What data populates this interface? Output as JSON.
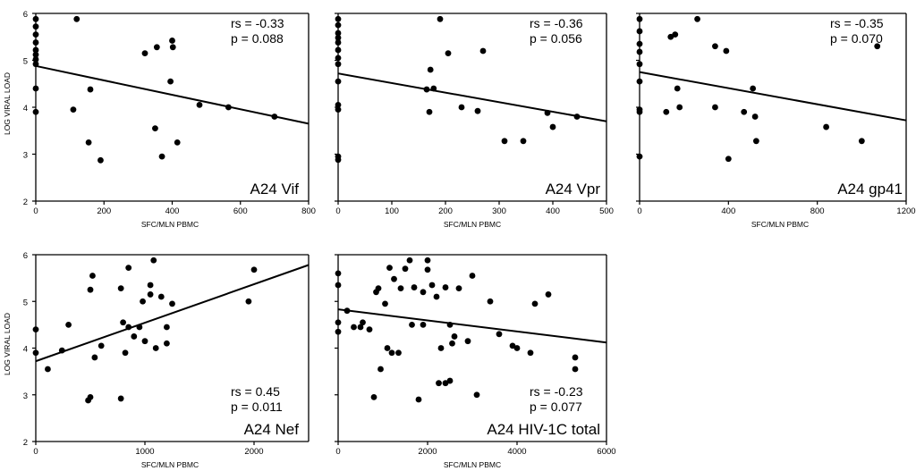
{
  "chart_data": [
    {
      "type": "scatter",
      "panel_label": "A24 Vif",
      "stats": {
        "rs": "rs = -0.33",
        "p": "p = 0.088"
      },
      "xlabel": "SFC/MLN PBMC",
      "ylabel": "LOG VIRAL LOAD",
      "xlim": [
        0,
        800
      ],
      "ylim": [
        2,
        6
      ],
      "x_ticks": [
        "0",
        "200",
        "400",
        "600",
        "800"
      ],
      "y_ticks": [
        "2",
        "3",
        "4",
        "5",
        "6"
      ],
      "grid": false,
      "regression": {
        "start": [
          0,
          4.88
        ],
        "end": [
          800,
          3.65
        ]
      },
      "points": [
        [
          0,
          5.88
        ],
        [
          0,
          5.72
        ],
        [
          0,
          5.55
        ],
        [
          0,
          5.38
        ],
        [
          0,
          5.22
        ],
        [
          0,
          5.12
        ],
        [
          0,
          5.02
        ],
        [
          0,
          4.92
        ],
        [
          0,
          4.4
        ],
        [
          0,
          3.9
        ],
        [
          110,
          3.95
        ],
        [
          120,
          5.88
        ],
        [
          155,
          3.25
        ],
        [
          160,
          4.38
        ],
        [
          190,
          2.87
        ],
        [
          320,
          5.15
        ],
        [
          350,
          3.55
        ],
        [
          355,
          5.28
        ],
        [
          370,
          2.95
        ],
        [
          395,
          4.55
        ],
        [
          400,
          5.42
        ],
        [
          402,
          5.28
        ],
        [
          415,
          3.25
        ],
        [
          480,
          4.05
        ],
        [
          565,
          4.0
        ],
        [
          700,
          3.8
        ]
      ]
    },
    {
      "type": "scatter",
      "panel_label": "A24 Vpr",
      "stats": {
        "rs": "rs = -0.36",
        "p": "p = 0.056"
      },
      "xlabel": "SFC/MLN PBMC",
      "ylabel": "",
      "xlim": [
        0,
        500
      ],
      "ylim": [
        2,
        6
      ],
      "x_ticks": [
        "0",
        "100",
        "200",
        "300",
        "400",
        "500"
      ],
      "y_ticks": [],
      "grid": false,
      "regression": {
        "start": [
          0,
          4.72
        ],
        "end": [
          500,
          3.7
        ]
      },
      "points": [
        [
          0,
          5.88
        ],
        [
          0,
          5.75
        ],
        [
          0,
          5.58
        ],
        [
          0,
          5.48
        ],
        [
          0,
          5.38
        ],
        [
          0,
          5.22
        ],
        [
          0,
          5.05
        ],
        [
          0,
          4.92
        ],
        [
          0,
          4.55
        ],
        [
          0,
          4.05
        ],
        [
          0,
          3.95
        ],
        [
          0,
          2.95
        ],
        [
          0,
          2.88
        ],
        [
          165,
          4.38
        ],
        [
          170,
          3.9
        ],
        [
          172,
          4.8
        ],
        [
          178,
          4.4
        ],
        [
          190,
          5.88
        ],
        [
          205,
          5.15
        ],
        [
          230,
          4.0
        ],
        [
          260,
          3.92
        ],
        [
          270,
          5.2
        ],
        [
          310,
          3.28
        ],
        [
          345,
          3.28
        ],
        [
          390,
          3.88
        ],
        [
          400,
          3.58
        ],
        [
          445,
          3.8
        ]
      ]
    },
    {
      "type": "scatter",
      "panel_label": "A24 gp41",
      "stats": {
        "rs": "rs = -0.35",
        "p": "p = 0.070"
      },
      "xlabel": "SFC/MLN PBMC",
      "ylabel": "",
      "xlim": [
        0,
        1200
      ],
      "ylim": [
        2,
        6
      ],
      "x_ticks": [
        "0",
        "400",
        "800",
        "1200"
      ],
      "y_ticks": [],
      "grid": false,
      "regression": {
        "start": [
          0,
          4.75
        ],
        "end": [
          1200,
          3.72
        ]
      },
      "points": [
        [
          0,
          5.88
        ],
        [
          0,
          5.62
        ],
        [
          0,
          5.35
        ],
        [
          0,
          5.18
        ],
        [
          0,
          4.92
        ],
        [
          0,
          4.55
        ],
        [
          0,
          3.95
        ],
        [
          0,
          3.9
        ],
        [
          0,
          2.95
        ],
        [
          120,
          3.9
        ],
        [
          140,
          5.5
        ],
        [
          160,
          5.55
        ],
        [
          170,
          4.4
        ],
        [
          180,
          4.0
        ],
        [
          260,
          5.88
        ],
        [
          340,
          5.3
        ],
        [
          340,
          4.0
        ],
        [
          390,
          5.2
        ],
        [
          400,
          2.9
        ],
        [
          470,
          3.9
        ],
        [
          510,
          4.4
        ],
        [
          520,
          3.8
        ],
        [
          525,
          3.28
        ],
        [
          840,
          3.58
        ],
        [
          1000,
          3.28
        ],
        [
          1070,
          5.3
        ]
      ]
    },
    {
      "type": "scatter",
      "panel_label": "A24 Nef",
      "stats": {
        "rs": "rs = 0.45",
        "p": "p = 0.011"
      },
      "xlabel": "SFC/MLN PBMC",
      "ylabel": "LOG VIRAL LOAD",
      "xlim": [
        0,
        2500
      ],
      "ylim": [
        2,
        6
      ],
      "x_ticks": [
        "0",
        "1000",
        "2000"
      ],
      "y_ticks": [
        "2",
        "3",
        "4",
        "5",
        "6"
      ],
      "grid": false,
      "regression": {
        "start": [
          0,
          3.72
        ],
        "end": [
          2500,
          5.78
        ]
      },
      "points": [
        [
          0,
          4.4
        ],
        [
          0,
          3.9
        ],
        [
          110,
          3.55
        ],
        [
          240,
          3.95
        ],
        [
          300,
          4.5
        ],
        [
          480,
          2.88
        ],
        [
          500,
          2.95
        ],
        [
          500,
          5.25
        ],
        [
          520,
          5.55
        ],
        [
          540,
          3.8
        ],
        [
          600,
          4.05
        ],
        [
          780,
          5.28
        ],
        [
          800,
          4.55
        ],
        [
          820,
          3.9
        ],
        [
          850,
          5.72
        ],
        [
          850,
          4.45
        ],
        [
          900,
          4.25
        ],
        [
          950,
          4.45
        ],
        [
          980,
          5.0
        ],
        [
          1000,
          4.15
        ],
        [
          1050,
          5.35
        ],
        [
          1050,
          5.15
        ],
        [
          1080,
          5.88
        ],
        [
          1100,
          4.0
        ],
        [
          1150,
          5.1
        ],
        [
          1200,
          4.45
        ],
        [
          1200,
          4.1
        ],
        [
          1250,
          4.95
        ],
        [
          780,
          2.92
        ],
        [
          1950,
          5.0
        ],
        [
          2000,
          5.68
        ]
      ]
    },
    {
      "type": "scatter",
      "panel_label": "A24 HIV-1C total",
      "stats": {
        "rs": "rs = -0.23",
        "p": "p = 0.077"
      },
      "xlabel": "SFC/MLN PBMC",
      "ylabel": "",
      "xlim": [
        0,
        6000
      ],
      "ylim": [
        2,
        6
      ],
      "x_ticks": [
        "0",
        "2000",
        "4000",
        "6000"
      ],
      "y_ticks": [],
      "grid": false,
      "regression": {
        "start": [
          0,
          4.83
        ],
        "end": [
          6000,
          4.12
        ]
      },
      "points": [
        [
          0,
          5.6
        ],
        [
          0,
          5.35
        ],
        [
          0,
          4.55
        ],
        [
          0,
          4.35
        ],
        [
          200,
          4.8
        ],
        [
          350,
          4.45
        ],
        [
          500,
          4.45
        ],
        [
          550,
          4.55
        ],
        [
          700,
          4.4
        ],
        [
          800,
          2.95
        ],
        [
          850,
          5.2
        ],
        [
          900,
          5.28
        ],
        [
          950,
          3.55
        ],
        [
          1050,
          4.95
        ],
        [
          1100,
          4.0
        ],
        [
          1150,
          5.72
        ],
        [
          1200,
          3.9
        ],
        [
          1250,
          5.48
        ],
        [
          1350,
          3.9
        ],
        [
          1400,
          5.28
        ],
        [
          1500,
          5.7
        ],
        [
          1600,
          5.88
        ],
        [
          1650,
          4.5
        ],
        [
          1700,
          5.3
        ],
        [
          1800,
          2.9
        ],
        [
          1900,
          5.2
        ],
        [
          1900,
          4.5
        ],
        [
          2000,
          5.88
        ],
        [
          2000,
          5.68
        ],
        [
          2100,
          5.35
        ],
        [
          2200,
          5.1
        ],
        [
          2250,
          3.25
        ],
        [
          2300,
          4.0
        ],
        [
          2400,
          3.25
        ],
        [
          2400,
          5.3
        ],
        [
          2500,
          3.3
        ],
        [
          2550,
          4.1
        ],
        [
          2600,
          4.25
        ],
        [
          2700,
          5.28
        ],
        [
          2900,
          4.15
        ],
        [
          3000,
          5.55
        ],
        [
          3100,
          3.0
        ],
        [
          3400,
          5.0
        ],
        [
          3900,
          4.05
        ],
        [
          4000,
          4.0
        ],
        [
          4300,
          3.9
        ],
        [
          4400,
          4.95
        ],
        [
          4700,
          5.15
        ],
        [
          5300,
          3.8
        ],
        [
          5300,
          3.55
        ],
        [
          2500,
          4.5
        ],
        [
          3600,
          4.3
        ]
      ]
    }
  ]
}
